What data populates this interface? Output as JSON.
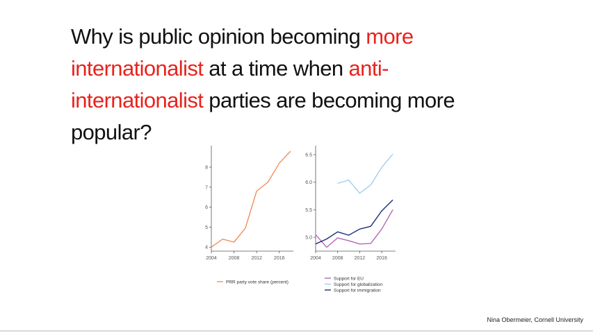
{
  "slide": {
    "title_parts": [
      {
        "text": "Why is public opinion becoming ",
        "highlight": false
      },
      {
        "text": "more internationalist",
        "highlight": true
      },
      {
        "text": " at a time when ",
        "highlight": false
      },
      {
        "text": "anti-internationalist",
        "highlight": true
      },
      {
        "text": " parties are becoming more popular?",
        "highlight": false
      }
    ],
    "highlight_color": "#e8231e",
    "footer": "Nina Obermeier, Cornell University"
  },
  "chart_data": [
    {
      "type": "line",
      "xlim": [
        2004,
        2018
      ],
      "ylim": [
        3.8,
        8.9
      ],
      "x_ticks": [
        "2004",
        "2008",
        "2012",
        "2016"
      ],
      "y_ticks": [
        "4",
        "5",
        "6",
        "7",
        "8"
      ],
      "series": [
        {
          "name": "PRR party vote share (percent)",
          "color": "#f28e5b",
          "x": [
            2004,
            2006,
            2008,
            2010,
            2012,
            2014,
            2016,
            2018
          ],
          "y": [
            4.0,
            4.4,
            4.25,
            4.95,
            6.8,
            7.25,
            8.2,
            8.8
          ]
        }
      ],
      "legend_position": "bottom"
    },
    {
      "type": "line",
      "xlim": [
        2004,
        2018
      ],
      "ylim": [
        4.75,
        6.6
      ],
      "x_ticks": [
        "2004",
        "2008",
        "2012",
        "2016"
      ],
      "y_ticks": [
        "5.0",
        "5.5",
        "6.0",
        "6.5"
      ],
      "series": [
        {
          "name": "Support for EU",
          "color": "#b467b1",
          "x": [
            2004,
            2006,
            2008,
            2010,
            2012,
            2014,
            2016,
            2018
          ],
          "y": [
            5.05,
            4.82,
            4.99,
            4.94,
            4.88,
            4.89,
            5.15,
            5.5
          ]
        },
        {
          "name": "Support for globalization",
          "color": "#a6cdea",
          "x": [
            2008,
            2010,
            2012,
            2014,
            2016,
            2018
          ],
          "y": [
            5.98,
            6.04,
            5.8,
            5.95,
            6.27,
            6.51
          ]
        },
        {
          "name": "Support for immigration",
          "color": "#1a2c78",
          "x": [
            2004,
            2006,
            2008,
            2010,
            2012,
            2014,
            2016,
            2018
          ],
          "y": [
            4.88,
            4.97,
            5.1,
            5.04,
            5.15,
            5.2,
            5.48,
            5.68
          ]
        }
      ],
      "legend_position": "bottom"
    }
  ]
}
